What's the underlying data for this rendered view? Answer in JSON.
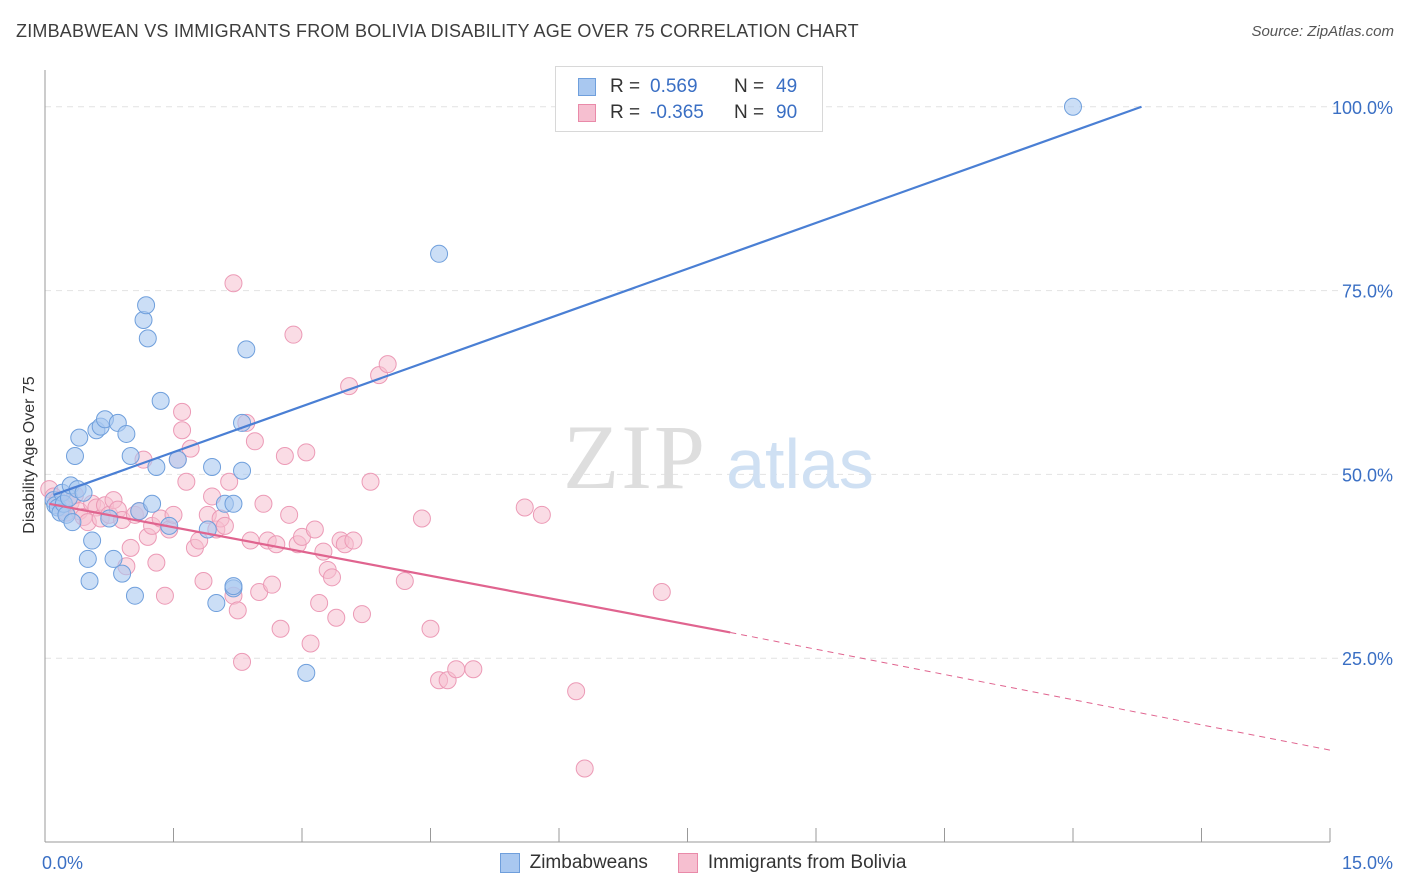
{
  "title": "ZIMBABWEAN VS IMMIGRANTS FROM BOLIVIA DISABILITY AGE OVER 75 CORRELATION CHART",
  "source": "Source: ZipAtlas.com",
  "legend": {
    "r_label": "R =",
    "n_label": "N =",
    "rows": [
      {
        "r": "0.569",
        "n": "49",
        "color": "#a9c8f0",
        "border": "#6f9fdc"
      },
      {
        "r": "-0.365",
        "n": "90",
        "color": "#f6bfd0",
        "border": "#e98aa9"
      }
    ]
  },
  "bottom_legend": [
    {
      "label": "Zimbabweans",
      "color": "#a9c8f0",
      "border": "#6f9fdc"
    },
    {
      "label": "Immigrants from Bolivia",
      "color": "#f6bfd0",
      "border": "#e98aa9"
    }
  ],
  "watermark": {
    "zip": "ZIP",
    "atlas": "atlas"
  },
  "chart_data": {
    "type": "scatter",
    "xlabel": "",
    "ylabel": "Disability Age Over 75",
    "xlim": [
      0,
      15
    ],
    "ylim": [
      0,
      105
    ],
    "x_tick_labels": [
      "0.0%",
      "15.0%"
    ],
    "y_ticks": [
      25,
      50,
      75,
      100
    ],
    "y_tick_labels": [
      "25.0%",
      "50.0%",
      "75.0%",
      "100.0%"
    ],
    "grid": true,
    "colors": {
      "blue": "#4a7fd4",
      "pink": "#e0648f",
      "blue_fill": "#a9c8f0",
      "pink_fill": "#f6bfd0",
      "tick_label": "#3a6fc4"
    },
    "series": [
      {
        "name": "Zimbabweans",
        "trend": {
          "x": [
            0.1,
            12.8
          ],
          "y": [
            47.2,
            100.0
          ]
        },
        "points": [
          [
            0.1,
            46.5
          ],
          [
            0.12,
            45.8
          ],
          [
            0.15,
            45.5
          ],
          [
            0.18,
            44.8
          ],
          [
            0.2,
            47.5
          ],
          [
            0.22,
            46.0
          ],
          [
            0.25,
            44.5
          ],
          [
            0.28,
            46.8
          ],
          [
            0.3,
            48.5
          ],
          [
            0.32,
            43.5
          ],
          [
            0.35,
            52.5
          ],
          [
            0.38,
            48.0
          ],
          [
            0.4,
            55.0
          ],
          [
            0.45,
            47.5
          ],
          [
            0.5,
            38.5
          ],
          [
            0.52,
            35.5
          ],
          [
            0.55,
            41.0
          ],
          [
            0.6,
            56.0
          ],
          [
            0.65,
            56.5
          ],
          [
            0.7,
            57.5
          ],
          [
            0.75,
            44.0
          ],
          [
            0.8,
            38.5
          ],
          [
            0.85,
            57.0
          ],
          [
            0.9,
            36.5
          ],
          [
            0.95,
            55.5
          ],
          [
            1.0,
            52.5
          ],
          [
            1.05,
            33.5
          ],
          [
            1.1,
            45.0
          ],
          [
            1.15,
            71.0
          ],
          [
            1.18,
            73.0
          ],
          [
            1.2,
            68.5
          ],
          [
            1.25,
            46.0
          ],
          [
            1.3,
            51.0
          ],
          [
            1.35,
            60.0
          ],
          [
            1.45,
            43.0
          ],
          [
            1.55,
            52.0
          ],
          [
            1.9,
            42.5
          ],
          [
            1.95,
            51.0
          ],
          [
            2.0,
            32.5
          ],
          [
            2.1,
            46.0
          ],
          [
            2.2,
            34.5
          ],
          [
            2.3,
            57.0
          ],
          [
            2.35,
            67.0
          ],
          [
            2.3,
            50.5
          ],
          [
            2.2,
            34.8
          ],
          [
            2.2,
            46.0
          ],
          [
            3.05,
            23.0
          ],
          [
            4.6,
            80.0
          ],
          [
            12.0,
            100.0
          ]
        ]
      },
      {
        "name": "Immigrants from Bolivia",
        "trend": {
          "x": [
            0.05,
            8.0
          ],
          "y": [
            46.0,
            28.5
          ]
        },
        "trend_dashed": {
          "x": [
            8.0,
            15.0
          ],
          "y": [
            28.5,
            12.5
          ]
        },
        "points": [
          [
            0.05,
            48.0
          ],
          [
            0.1,
            47.0
          ],
          [
            0.15,
            46.5
          ],
          [
            0.2,
            45.5
          ],
          [
            0.25,
            44.8
          ],
          [
            0.3,
            46.2
          ],
          [
            0.35,
            47.2
          ],
          [
            0.4,
            45.0
          ],
          [
            0.45,
            44.2
          ],
          [
            0.5,
            43.5
          ],
          [
            0.55,
            46.0
          ],
          [
            0.6,
            45.5
          ],
          [
            0.65,
            44.0
          ],
          [
            0.7,
            45.8
          ],
          [
            0.75,
            44.5
          ],
          [
            0.8,
            46.5
          ],
          [
            0.85,
            45.2
          ],
          [
            0.9,
            43.8
          ],
          [
            0.95,
            37.5
          ],
          [
            1.0,
            40.0
          ],
          [
            1.05,
            44.5
          ],
          [
            1.1,
            45.0
          ],
          [
            1.15,
            52.0
          ],
          [
            1.2,
            41.5
          ],
          [
            1.25,
            43.0
          ],
          [
            1.3,
            38.0
          ],
          [
            1.35,
            44.0
          ],
          [
            1.4,
            33.5
          ],
          [
            1.45,
            42.5
          ],
          [
            1.5,
            44.5
          ],
          [
            1.55,
            52.0
          ],
          [
            1.6,
            58.5
          ],
          [
            1.6,
            56.0
          ],
          [
            1.65,
            49.0
          ],
          [
            1.7,
            53.5
          ],
          [
            1.75,
            40.0
          ],
          [
            1.8,
            41.0
          ],
          [
            1.85,
            35.5
          ],
          [
            1.9,
            44.5
          ],
          [
            1.95,
            47.0
          ],
          [
            2.0,
            42.5
          ],
          [
            2.05,
            44.0
          ],
          [
            2.1,
            43.0
          ],
          [
            2.15,
            49.0
          ],
          [
            2.2,
            33.5
          ],
          [
            2.25,
            31.5
          ],
          [
            2.3,
            24.5
          ],
          [
            2.35,
            57.0
          ],
          [
            2.4,
            41.0
          ],
          [
            2.45,
            54.5
          ],
          [
            2.5,
            34.0
          ],
          [
            2.55,
            46.0
          ],
          [
            2.6,
            41.0
          ],
          [
            2.65,
            35.0
          ],
          [
            2.7,
            40.5
          ],
          [
            2.75,
            29.0
          ],
          [
            2.8,
            52.5
          ],
          [
            2.85,
            44.5
          ],
          [
            2.9,
            69.0
          ],
          [
            2.95,
            40.5
          ],
          [
            3.0,
            41.5
          ],
          [
            3.05,
            53.0
          ],
          [
            3.1,
            27.0
          ],
          [
            3.15,
            42.5
          ],
          [
            3.2,
            32.5
          ],
          [
            3.25,
            39.5
          ],
          [
            3.3,
            37.0
          ],
          [
            3.35,
            36.0
          ],
          [
            3.4,
            30.5
          ],
          [
            3.45,
            41.0
          ],
          [
            3.5,
            40.5
          ],
          [
            3.55,
            62.0
          ],
          [
            3.6,
            41.0
          ],
          [
            3.7,
            31.0
          ],
          [
            3.8,
            49.0
          ],
          [
            3.9,
            63.5
          ],
          [
            4.0,
            65.0
          ],
          [
            4.2,
            35.5
          ],
          [
            4.4,
            44.0
          ],
          [
            4.5,
            29.0
          ],
          [
            4.6,
            22.0
          ],
          [
            4.7,
            22.0
          ],
          [
            4.8,
            23.5
          ],
          [
            5.0,
            23.5
          ],
          [
            5.6,
            45.5
          ],
          [
            5.8,
            44.5
          ],
          [
            6.2,
            20.5
          ],
          [
            6.3,
            10.0
          ],
          [
            7.2,
            34.0
          ],
          [
            2.2,
            76.0
          ]
        ]
      }
    ]
  }
}
